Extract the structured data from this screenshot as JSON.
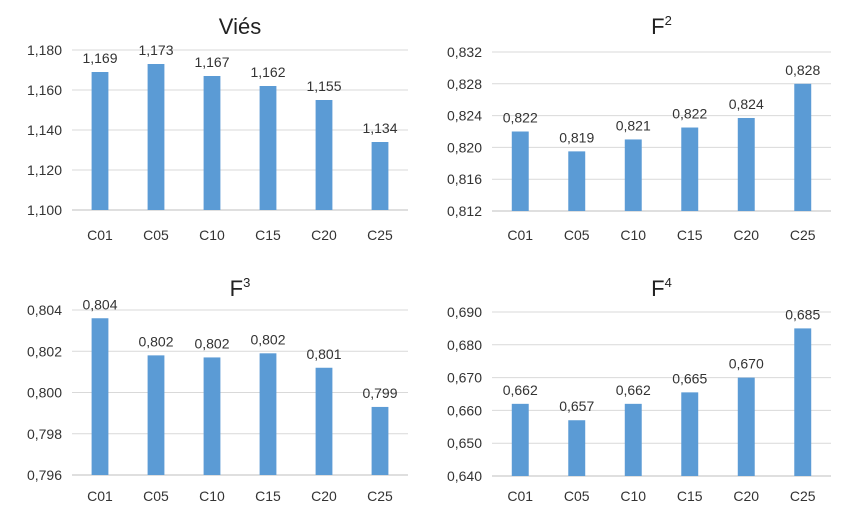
{
  "chart_data": [
    {
      "type": "bar",
      "title": "Viés",
      "title_sup": "",
      "categories": [
        "C01",
        "C05",
        "C10",
        "C15",
        "C20",
        "C25"
      ],
      "values": [
        1.169,
        1.173,
        1.167,
        1.162,
        1.155,
        1.134
      ],
      "data_labels": [
        "1,169",
        "1,173",
        "1,167",
        "1,162",
        "1,155",
        "1,134"
      ],
      "ylim": [
        1.1,
        1.18
      ],
      "yticks": [
        1.1,
        1.12,
        1.14,
        1.16,
        1.18
      ],
      "ytick_labels": [
        "1,100",
        "1,120",
        "1,140",
        "1,160",
        "1,180"
      ],
      "grid": true,
      "color": "#5B9BD5"
    },
    {
      "type": "bar",
      "title": "F",
      "title_sup": "2",
      "categories": [
        "C01",
        "C05",
        "C10",
        "C15",
        "C20",
        "C25"
      ],
      "values": [
        0.822,
        0.8195,
        0.821,
        0.8225,
        0.8237,
        0.828
      ],
      "data_labels": [
        "0,822",
        "0,819",
        "0,821",
        "0,822",
        "0,824",
        "0,828"
      ],
      "ylim": [
        0.812,
        0.832
      ],
      "yticks": [
        0.812,
        0.816,
        0.82,
        0.824,
        0.828,
        0.832
      ],
      "ytick_labels": [
        "0,812",
        "0,816",
        "0,820",
        "0,824",
        "0,828",
        "0,832"
      ],
      "grid": true,
      "color": "#5B9BD5"
    },
    {
      "type": "bar",
      "title": "F",
      "title_sup": "3",
      "categories": [
        "C01",
        "C05",
        "C10",
        "C15",
        "C20",
        "C25"
      ],
      "values": [
        0.8036,
        0.8018,
        0.8017,
        0.8019,
        0.8012,
        0.7993
      ],
      "data_labels": [
        "0,804",
        "0,802",
        "0,802",
        "0,802",
        "0,801",
        "0,799"
      ],
      "ylim": [
        0.796,
        0.804
      ],
      "yticks": [
        0.796,
        0.798,
        0.8,
        0.802,
        0.804
      ],
      "ytick_labels": [
        "0,796",
        "0,798",
        "0,800",
        "0,802",
        "0,804"
      ],
      "grid": true,
      "color": "#5B9BD5"
    },
    {
      "type": "bar",
      "title": "F",
      "title_sup": "4",
      "categories": [
        "C01",
        "C05",
        "C10",
        "C15",
        "C20",
        "C25"
      ],
      "values": [
        0.662,
        0.657,
        0.662,
        0.6655,
        0.67,
        0.685
      ],
      "data_labels": [
        "0,662",
        "0,657",
        "0,662",
        "0,665",
        "0,670",
        "0,685"
      ],
      "ylim": [
        0.64,
        0.69
      ],
      "yticks": [
        0.64,
        0.65,
        0.66,
        0.67,
        0.68,
        0.69
      ],
      "ytick_labels": [
        "0,640",
        "0,650",
        "0,660",
        "0,670",
        "0,680",
        "0,690"
      ],
      "grid": true,
      "color": "#5B9BD5"
    }
  ]
}
